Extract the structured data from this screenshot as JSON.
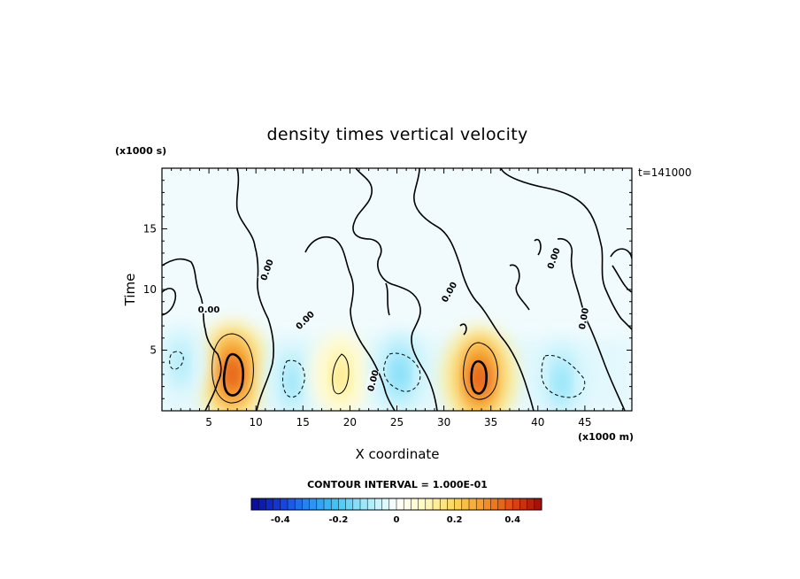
{
  "chart_data": {
    "type": "heatmap",
    "title": "density times vertical velocity",
    "xlabel": "X coordinate",
    "ylabel": "Time",
    "x_unit": "(x1000 m)",
    "y_unit": "(x1000 s)",
    "time_stamp": "t=141000",
    "xlim": [
      0,
      50
    ],
    "ylim": [
      0,
      20
    ],
    "xticks": [
      5,
      10,
      15,
      20,
      25,
      30,
      35,
      40,
      45
    ],
    "yticks": [
      5,
      10,
      15
    ],
    "contour_interval_text": "CONTOUR INTERVAL = 1.000E-01",
    "contour_interval": 0.1,
    "contour_labels": [
      "0.00",
      "0.00",
      "0.00",
      "0.00",
      "0.00",
      "0.00",
      "0.00"
    ],
    "colorbar": {
      "min": -0.5,
      "max": 0.5,
      "tick_values": [
        -0.4,
        -0.2,
        0,
        0.2,
        0.4
      ],
      "tick_labels": [
        "-0.4",
        "-0.2",
        "0",
        "0.2",
        "0.4"
      ]
    },
    "features": [
      {
        "x": 7.5,
        "y": 3.2,
        "value": 0.38
      },
      {
        "x": 13.8,
        "y": 2.5,
        "value": -0.12
      },
      {
        "x": 19.0,
        "y": 3.0,
        "value": 0.16
      },
      {
        "x": 25.3,
        "y": 3.2,
        "value": -0.15
      },
      {
        "x": 33.8,
        "y": 2.8,
        "value": 0.38
      },
      {
        "x": 42.5,
        "y": 2.5,
        "value": -0.13
      },
      {
        "x": 2.0,
        "y": 4.0,
        "value": -0.1
      }
    ]
  }
}
